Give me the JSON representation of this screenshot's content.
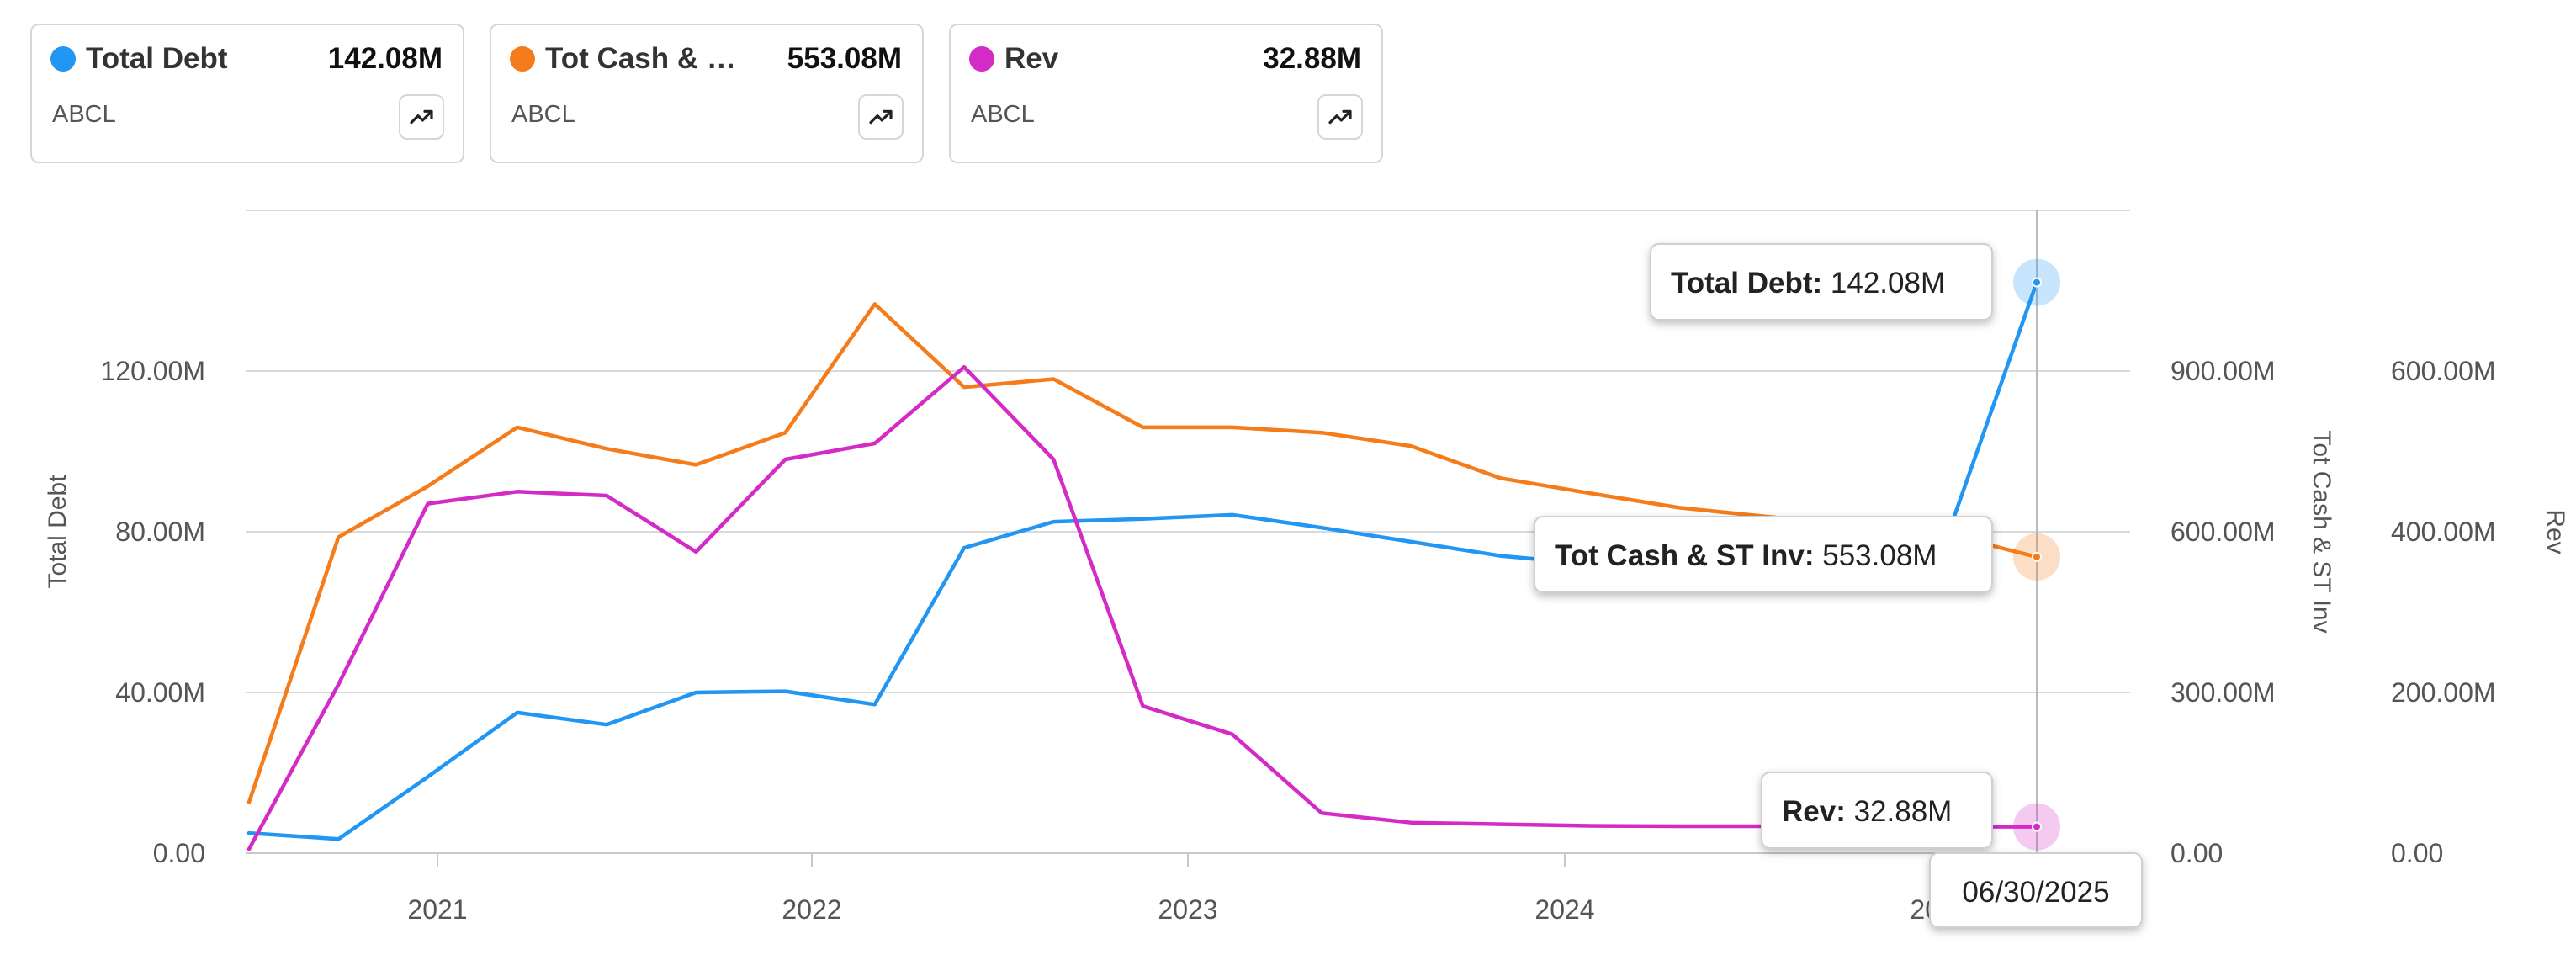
{
  "cards": [
    {
      "name": "Total Debt",
      "value": "142.08M",
      "ticker": "ABCL",
      "color": "#2196f3"
    },
    {
      "name": "Tot Cash & ST Inv",
      "value": "553.08M",
      "ticker": "ABCL",
      "color": "#f57c1a"
    },
    {
      "name": "Rev",
      "value": "32.88M",
      "ticker": "ABCL",
      "color": "#d42ac6"
    }
  ],
  "icons": {
    "trend": "trending-up-icon"
  },
  "chart_data": {
    "type": "line",
    "x": [
      "2020-06-30",
      "2020-09-30",
      "2020-12-31",
      "2021-03-31",
      "2021-06-30",
      "2021-09-30",
      "2021-12-31",
      "2022-03-31",
      "2022-06-30",
      "2022-09-30",
      "2022-12-31",
      "2023-03-31",
      "2023-06-30",
      "2023-09-30",
      "2023-12-31",
      "2024-03-31",
      "2024-06-30",
      "2024-09-30",
      "2024-12-31",
      "2025-03-31",
      "2025-06-30"
    ],
    "x_tick_labels": [
      "2021",
      "2022",
      "2023",
      "2024",
      "2025"
    ],
    "series": [
      {
        "name": "Total Debt",
        "color": "#2196f3",
        "axis": "left",
        "values": [
          5,
          3.5,
          19,
          35,
          32,
          40,
          40.3,
          37,
          76,
          82.5,
          83.2,
          84.2,
          81,
          77.5,
          74,
          72,
          71.5,
          73,
          72.5,
          79,
          142.08
        ]
      },
      {
        "name": "Tot Cash & ST Inv",
        "color": "#f57c1a",
        "axis": "right1",
        "values": [
          95,
          590,
          685,
          795,
          755,
          725,
          785,
          1025,
          870,
          885,
          795,
          795,
          785,
          760,
          700,
          672,
          645,
          628,
          612,
          595,
          553.08
        ]
      },
      {
        "name": "Rev",
        "color": "#d42ac6",
        "axis": "right2",
        "values": [
          5,
          210,
          435,
          450,
          445,
          375,
          490,
          510,
          605,
          490,
          183,
          148,
          50,
          38,
          36,
          34,
          33.5,
          33.5,
          33.2,
          33,
          32.88
        ]
      }
    ],
    "axes": {
      "left": {
        "label": "Total Debt",
        "range": [
          0,
          160
        ],
        "ticks": [
          0,
          40,
          80,
          120
        ],
        "tick_labels": [
          "0.00",
          "40.00M",
          "80.00M",
          "120.00M"
        ]
      },
      "right1": {
        "label": "Tot Cash & ST Inv",
        "range": [
          0,
          1200
        ],
        "ticks": [
          0,
          300,
          600,
          900
        ],
        "tick_labels": [
          "0.00",
          "300.00M",
          "600.00M",
          "900.00M"
        ]
      },
      "right2": {
        "label": "Rev",
        "range": [
          0,
          800
        ],
        "ticks": [
          0,
          200,
          400,
          600
        ],
        "tick_labels": [
          "0.00",
          "200.00M",
          "400.00M",
          "600.00M"
        ]
      }
    },
    "tooltips": [
      {
        "label": "Total Debt:",
        "value": "142.08M"
      },
      {
        "label": "Tot Cash & ST Inv:",
        "value": "553.08M"
      },
      {
        "label": "Rev:",
        "value": "32.88M"
      }
    ],
    "crosshair_date": "06/30/2025",
    "grid": true,
    "legend": "top cards"
  }
}
